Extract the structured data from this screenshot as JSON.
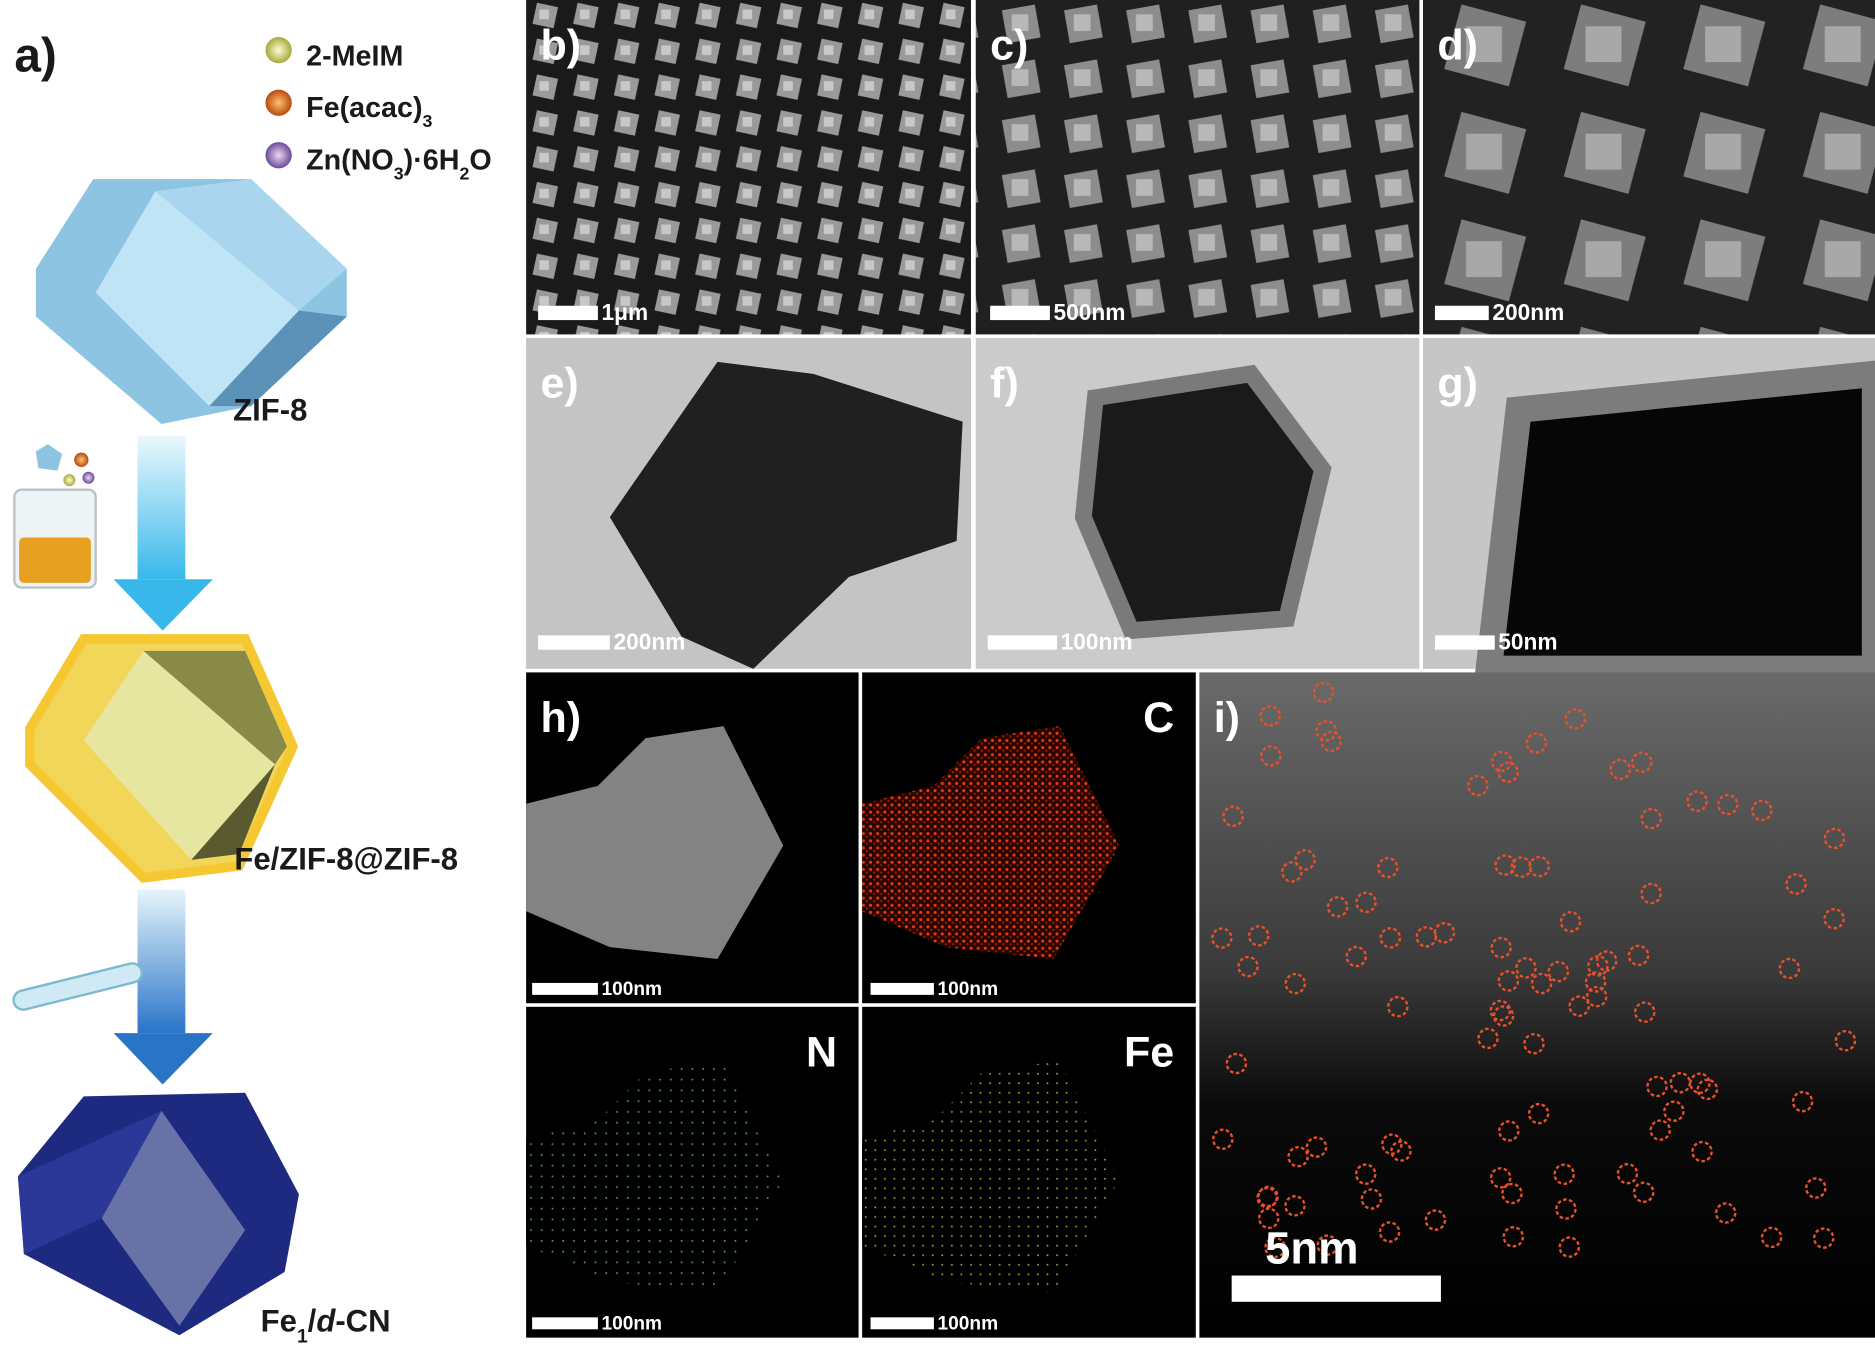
{
  "schematic": {
    "label": "a)",
    "legend": [
      {
        "parts": [
          {
            "text": "2-MeIM"
          }
        ]
      },
      {
        "parts": [
          {
            "text": "Fe(acac)"
          },
          {
            "text": "3",
            "style": "sub"
          }
        ]
      },
      {
        "parts": [
          {
            "text": "Zn(NO"
          },
          {
            "text": "3",
            "style": "sub"
          },
          {
            "text": ")·6H"
          },
          {
            "text": "2",
            "style": "sub"
          },
          {
            "text": "O"
          }
        ]
      }
    ],
    "stages": [
      {
        "parts": [
          {
            "text": "ZIF-8"
          }
        ]
      },
      {
        "parts": [
          {
            "text": "Fe/ZIF-8@ZIF-8"
          }
        ]
      },
      {
        "parts": [
          {
            "text": "Fe"
          },
          {
            "text": "1",
            "style": "sub"
          },
          {
            "text": "/"
          },
          {
            "text": "d",
            "style": "italic"
          },
          {
            "text": "-CN"
          }
        ]
      }
    ]
  },
  "panels": [
    {
      "label": "b)",
      "scale_bar": "1μm"
    },
    {
      "label": "c)",
      "scale_bar": "500nm"
    },
    {
      "label": "d)",
      "scale_bar": "200nm"
    },
    {
      "label": "e)",
      "scale_bar": "200nm"
    },
    {
      "label": "f)",
      "scale_bar": "100nm"
    },
    {
      "label": "g)",
      "scale_bar": "50nm"
    },
    {
      "label": "h)",
      "scale_bar": "100nm"
    },
    {
      "label": "C",
      "scale_bar": "100nm"
    },
    {
      "label": "N",
      "scale_bar": "100nm"
    },
    {
      "label": "Fe",
      "scale_bar": "100nm"
    },
    {
      "label": "i)",
      "scale_bar": "5nm"
    }
  ]
}
